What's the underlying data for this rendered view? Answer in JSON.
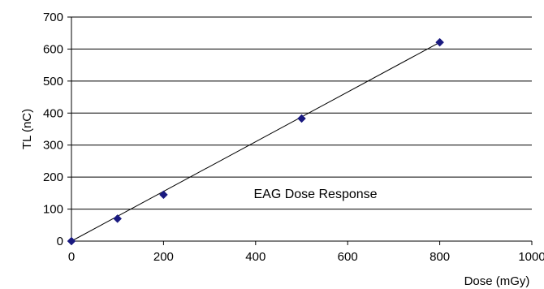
{
  "chart_data": {
    "type": "scatter",
    "title": "",
    "xlabel": "Dose (mGy)",
    "ylabel": "TL (nC)",
    "xlim": [
      0,
      1000
    ],
    "ylim": [
      0,
      700
    ],
    "x_ticks": [
      0,
      200,
      400,
      600,
      800,
      1000
    ],
    "y_ticks": [
      0,
      100,
      200,
      300,
      400,
      500,
      600,
      700
    ],
    "x_tick_labels": [
      "0",
      "200",
      "400",
      "600",
      "800",
      "1000"
    ],
    "y_tick_labels": [
      "0",
      "100",
      "200",
      "300",
      "400",
      "500",
      "600",
      "700"
    ],
    "grid": "horizontal",
    "series": [
      {
        "marker": "diamond",
        "color": "#1a1a80",
        "x": [
          0,
          100,
          200,
          500,
          800
        ],
        "y": [
          0,
          70,
          145,
          383,
          621
        ]
      }
    ],
    "trendline": {
      "type": "linear",
      "from": [
        0,
        0
      ],
      "to": [
        800,
        621
      ],
      "color": "#000000"
    },
    "annotation": "EAG Dose Response"
  }
}
